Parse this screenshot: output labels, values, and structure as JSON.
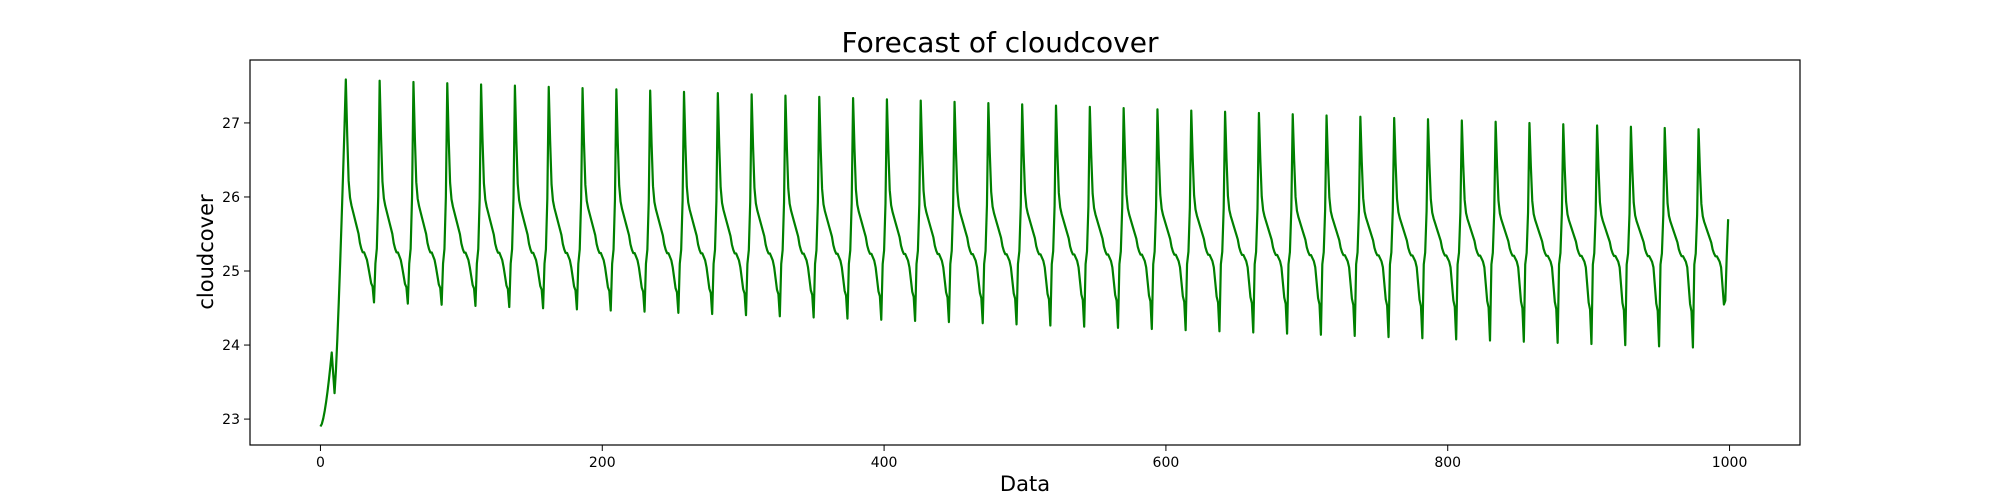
{
  "chart_data": {
    "type": "line",
    "title": "Forecast of cloudcover",
    "xlabel": "Data",
    "ylabel": "cloudcover",
    "xlim": [
      -50,
      1050
    ],
    "ylim": [
      22.65,
      27.85
    ],
    "xticks": [
      0,
      200,
      400,
      600,
      800,
      1000
    ],
    "yticks": [
      23,
      24,
      25,
      26,
      27
    ],
    "grid": false,
    "legend": "none",
    "series": [
      {
        "color": "#008000",
        "model": {
          "n_points": 1000,
          "start": 22.9,
          "cycle_length": 24,
          "pattern": [
            0.0,
            0.02,
            0.1,
            0.38,
            1.0,
            0.7,
            0.46,
            0.37,
            0.33,
            0.3,
            0.27,
            0.24,
            0.21,
            0.18,
            0.13,
            0.1,
            0.08,
            0.08,
            0.06,
            0.04,
            0.0,
            -0.05,
            -0.1,
            -0.12
          ],
          "peak_start": 27.6,
          "peak_end": 26.9,
          "trough_start": 24.6,
          "trough_end": 23.95,
          "base": 25.05
        }
      }
    ]
  }
}
